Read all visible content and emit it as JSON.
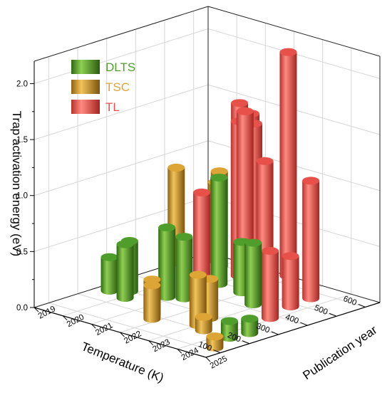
{
  "chart_data": {
    "type": "bar3d",
    "zlabel": "Trap activation energy (eV)",
    "xlabel": "Temperature (K)",
    "ylabel": "Publication year",
    "zlim": [
      0,
      2.2
    ],
    "xlim": [
      50,
      650
    ],
    "ylim": [
      2019,
      2025
    ],
    "z_ticks": [
      0.0,
      0.5,
      1.0,
      1.5,
      2.0
    ],
    "z_tick_labels": [
      "0.0",
      "0.5",
      "1.0",
      "1.5",
      "2.0"
    ],
    "x_ticks": [
      100,
      200,
      300,
      400,
      500,
      600
    ],
    "x_tick_labels": [
      "100",
      "200",
      "300",
      "400",
      "500",
      "600"
    ],
    "y_ticks": [
      2019,
      2020,
      2021,
      2022,
      2023,
      2024,
      2025
    ],
    "y_tick_labels": [
      "2019",
      "2020",
      "2021",
      "2022",
      "2023",
      "2024",
      "2025"
    ],
    "legend_position": "top-left",
    "series": [
      {
        "name": "DLTS",
        "color": "#4f9e2c",
        "points": [
          {
            "temperature": 270,
            "year": 2019.4,
            "energy": 0.3
          },
          {
            "temperature": 300,
            "year": 2019.8,
            "energy": 0.45
          },
          {
            "temperature": 255,
            "year": 2020.1,
            "energy": 0.48
          },
          {
            "temperature": 330,
            "year": 2020.8,
            "energy": 0.62
          },
          {
            "temperature": 350,
            "year": 2021.2,
            "energy": 0.55
          },
          {
            "temperature": 490,
            "year": 2021.0,
            "energy": 0.95
          },
          {
            "temperature": 480,
            "year": 2021.9,
            "energy": 0.45
          },
          {
            "temperature": 430,
            "year": 2022.8,
            "energy": 0.55
          },
          {
            "temperature": 200,
            "year": 2024.3,
            "energy": 0.15
          },
          {
            "temperature": 260,
            "year": 2024.4,
            "energy": 0.13
          }
        ]
      },
      {
        "name": "TSC",
        "color": "#dda536",
        "points": [
          {
            "temperature": 540,
            "year": 2019.0,
            "energy": 0.85
          },
          {
            "temperature": 620,
            "year": 2019.6,
            "energy": 0.7
          },
          {
            "temperature": 590,
            "year": 2020.0,
            "energy": 0.85
          },
          {
            "temperature": 200,
            "year": 2021.6,
            "energy": 0.32
          },
          {
            "temperature": 180,
            "year": 2021.8,
            "energy": 0.3
          },
          {
            "temperature": 280,
            "year": 2022.8,
            "energy": 0.35
          },
          {
            "temperature": 220,
            "year": 2023.0,
            "energy": 0.45
          },
          {
            "temperature": 200,
            "year": 2023.4,
            "energy": 0.12
          },
          {
            "temperature": 120,
            "year": 2024.6,
            "energy": 0.1
          }
        ]
      },
      {
        "name": "TL",
        "color": "#e8504a",
        "points": [
          {
            "temperature": 630,
            "year": 2020.3,
            "energy": 1.45
          },
          {
            "temperature": 620,
            "year": 2020.8,
            "energy": 1.4
          },
          {
            "temperature": 570,
            "year": 2020.9,
            "energy": 1.38
          },
          {
            "temperature": 600,
            "year": 2021.1,
            "energy": 1.35
          },
          {
            "temperature": 560,
            "year": 2021.2,
            "energy": 1.5
          },
          {
            "temperature": 440,
            "year": 2020.9,
            "energy": 0.85
          },
          {
            "temperature": 650,
            "year": 2021.8,
            "energy": 2.0
          },
          {
            "temperature": 500,
            "year": 2022.5,
            "energy": 1.2
          },
          {
            "temperature": 560,
            "year": 2023.5,
            "energy": 1.05
          },
          {
            "temperature": 480,
            "year": 2023.6,
            "energy": 0.45
          },
          {
            "temperature": 380,
            "year": 2023.9,
            "energy": 0.6
          }
        ]
      }
    ]
  }
}
